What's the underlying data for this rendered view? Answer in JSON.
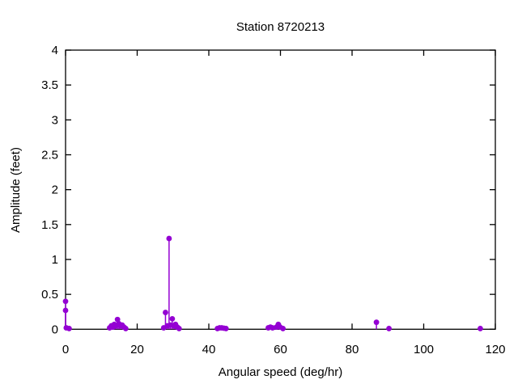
{
  "chart_data": {
    "type": "scatter",
    "style": "impulses-with-points",
    "title": "Station 8720213",
    "xlabel": "Angular speed (deg/hr)",
    "ylabel": "Amplitude (feet)",
    "xlim": [
      0,
      120
    ],
    "ylim": [
      0,
      4
    ],
    "x_ticks": [
      0,
      20,
      40,
      60,
      80,
      100,
      120
    ],
    "y_ticks": [
      0,
      0.5,
      1,
      1.5,
      2,
      2.5,
      3,
      3.5,
      4
    ],
    "grid": false,
    "legend": "none",
    "point_color": "#9400D3",
    "axis_color": "#000000",
    "background_color": "#ffffff",
    "points": [
      [
        0,
        0.4
      ],
      [
        0,
        0.27
      ],
      [
        0.2,
        0.02
      ],
      [
        1.0,
        0.01
      ],
      [
        12.3,
        0.02
      ],
      [
        12.8,
        0.05
      ],
      [
        13.2,
        0.03
      ],
      [
        13.6,
        0.07
      ],
      [
        14.0,
        0.05
      ],
      [
        14.5,
        0.14
      ],
      [
        14.9,
        0.08
      ],
      [
        15.3,
        0.05
      ],
      [
        15.8,
        0.06
      ],
      [
        16.3,
        0.03
      ],
      [
        16.8,
        0.01
      ],
      [
        27.4,
        0.02
      ],
      [
        27.9,
        0.24
      ],
      [
        28.4,
        0.05
      ],
      [
        28.9,
        1.3
      ],
      [
        29.3,
        0.06
      ],
      [
        29.8,
        0.15
      ],
      [
        30.3,
        0.05
      ],
      [
        30.7,
        0.07
      ],
      [
        31.2,
        0.03
      ],
      [
        31.7,
        0.01
      ],
      [
        42.4,
        0.01
      ],
      [
        43.0,
        0.02
      ],
      [
        43.6,
        0.02
      ],
      [
        44.2,
        0.015
      ],
      [
        44.8,
        0.01
      ],
      [
        56.6,
        0.02
      ],
      [
        57.2,
        0.03
      ],
      [
        57.8,
        0.02
      ],
      [
        58.9,
        0.03
      ],
      [
        59.4,
        0.07
      ],
      [
        59.9,
        0.03
      ],
      [
        60.7,
        0.01
      ],
      [
        86.8,
        0.1
      ],
      [
        90.3,
        0.01
      ],
      [
        115.8,
        0.01
      ]
    ]
  }
}
